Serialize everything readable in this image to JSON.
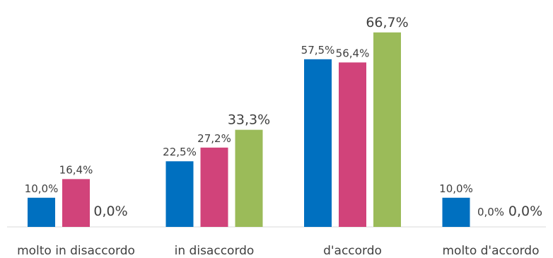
{
  "chart_data": {
    "type": "bar",
    "categories": [
      "molto in disaccordo",
      "in disaccordo",
      "d'accordo",
      "molto d'accordo"
    ],
    "series": [
      {
        "values": [
          10.0,
          22.5,
          57.5,
          10.0
        ],
        "labels": [
          "10,0%",
          "22,5%",
          "57,5%",
          "10,0%"
        ],
        "color": "#0070C0"
      },
      {
        "values": [
          16.4,
          27.2,
          56.4,
          0.0
        ],
        "labels": [
          "16,4%",
          "27,2%",
          "56,4%",
          "0,0%"
        ],
        "color": "#D1437A"
      },
      {
        "values": [
          0.0,
          33.3,
          66.7,
          0.0
        ],
        "labels": [
          "0,0%",
          "33,3%",
          "66,7%",
          "0,0%"
        ],
        "color": "#9BBB59"
      }
    ],
    "ylim": [
      0,
      80
    ],
    "grid": false,
    "axis_color": "#D9D9D9"
  }
}
